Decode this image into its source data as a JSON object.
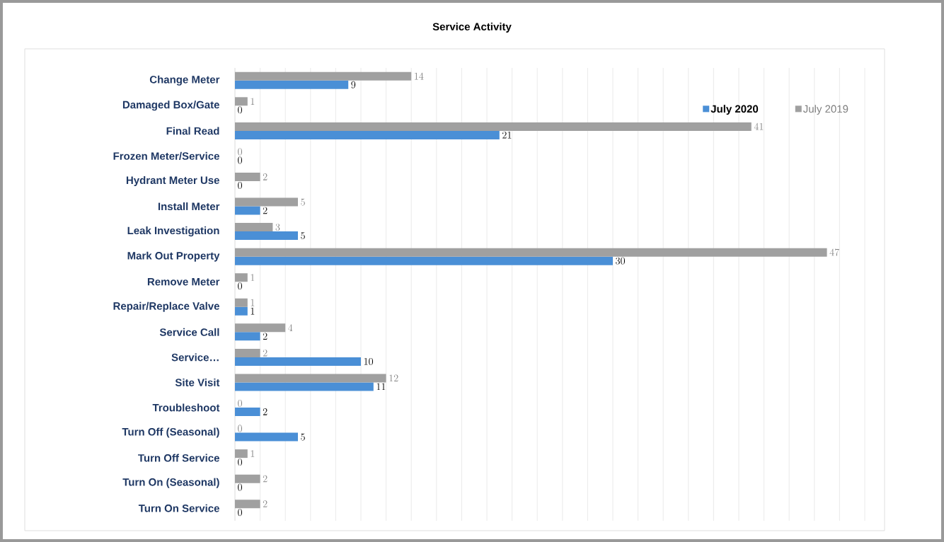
{
  "chart_data": {
    "type": "bar",
    "orientation": "horizontal",
    "title": "Service Activity",
    "categories": [
      "Change Meter",
      "Damaged Box/Gate",
      "Final Read",
      "Frozen Meter/Service",
      "Hydrant Meter Use",
      "Install Meter",
      "Leak Investigation",
      "Mark Out Property",
      "Remove Meter",
      "Repair/Replace Valve",
      "Service Call",
      "Service…",
      "Site Visit",
      "Troubleshoot",
      "Turn Off (Seasonal)",
      "Turn Off Service",
      "Turn On (Seasonal)",
      "Turn On Service"
    ],
    "series": [
      {
        "name": "July 2020",
        "color": "#4a8fd6",
        "values": [
          9,
          0,
          21,
          0,
          0,
          2,
          5,
          30,
          0,
          1,
          2,
          10,
          11,
          2,
          5,
          0,
          0,
          0
        ]
      },
      {
        "name": "July 2019",
        "color": "#a0a0a0",
        "values": [
          14,
          1,
          41,
          0,
          2,
          5,
          3,
          47,
          1,
          1,
          4,
          2,
          12,
          0,
          0,
          1,
          2,
          2
        ]
      }
    ],
    "xlim": [
      0,
      50
    ],
    "xticks": [
      {
        "value": 0,
        "label": null
      },
      {
        "value": 2,
        "label": null
      },
      {
        "value": 4,
        "label": null
      },
      {
        "value": 6,
        "label": null
      },
      {
        "value": 8,
        "label": null
      },
      {
        "value": 10,
        "label": null
      },
      {
        "value": 12,
        "label": null
      },
      {
        "value": 14,
        "label": null
      },
      {
        "value": 16,
        "label": null
      },
      {
        "value": 18,
        "label": null
      },
      {
        "value": 20,
        "label": null
      },
      {
        "value": 22,
        "label": null
      },
      {
        "value": 24,
        "label": null
      },
      {
        "value": 26,
        "label": null
      },
      {
        "value": 28,
        "label": null
      },
      {
        "value": 30,
        "label": null
      },
      {
        "value": 32,
        "label": null
      },
      {
        "value": 34,
        "label": null
      },
      {
        "value": 36,
        "label": null
      },
      {
        "value": 38,
        "label": null
      },
      {
        "value": 40,
        "label": null
      },
      {
        "value": 42,
        "label": null
      },
      {
        "value": 44,
        "label": null
      },
      {
        "value": 46,
        "label": null
      },
      {
        "value": 48,
        "label": null
      },
      {
        "value": 50,
        "label": null
      }
    ],
    "tick_labels": "y",
    "grid": "x",
    "legend": "top right",
    "data_labels": true
  }
}
